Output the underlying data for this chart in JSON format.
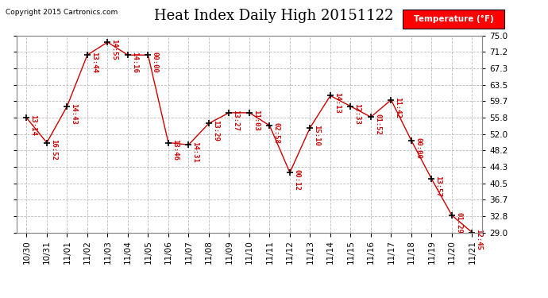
{
  "title": "Heat Index Daily High 20151122",
  "copyright_text": "Copyright 2015 Cartronics.com",
  "legend_label": "Temperature (°F)",
  "background_color": "#ffffff",
  "line_color": "#cc0000",
  "point_color": "#000000",
  "text_color": "#cc0000",
  "grid_color": "#bbbbbb",
  "x_labels": [
    "10/30",
    "10/31",
    "11/01",
    "11/02",
    "11/03",
    "11/04",
    "11/05",
    "11/06",
    "11/07",
    "11/08",
    "11/09",
    "11/10",
    "11/11",
    "11/12",
    "11/13",
    "11/14",
    "11/15",
    "11/16",
    "11/17",
    "11/18",
    "11/19",
    "11/20",
    "11/21"
  ],
  "values": [
    55.8,
    50.0,
    58.5,
    70.5,
    73.5,
    70.5,
    70.5,
    50.0,
    49.5,
    54.5,
    57.0,
    57.0,
    54.0,
    43.0,
    53.5,
    61.0,
    58.5,
    56.0,
    60.0,
    50.5,
    41.5,
    33.0,
    29.0
  ],
  "point_labels": [
    "13:14",
    "16:52",
    "14:43",
    "13:44",
    "14:55",
    "14:16",
    "00:00",
    "13:46",
    "14:31",
    "13:29",
    "13:27",
    "11:03",
    "02:58",
    "00:12",
    "15:10",
    "14:13",
    "12:33",
    "01:52",
    "11:42",
    "00:00",
    "13:57",
    "01:29",
    "12:45"
  ],
  "ylim": [
    29.0,
    75.0
  ],
  "yticks": [
    29.0,
    32.8,
    36.7,
    40.5,
    44.3,
    48.2,
    52.0,
    55.8,
    59.7,
    63.5,
    67.3,
    71.2,
    75.0
  ],
  "title_fontsize": 13,
  "label_fontsize": 6.5,
  "axis_fontsize": 7.5,
  "copyright_fontsize": 6.5
}
